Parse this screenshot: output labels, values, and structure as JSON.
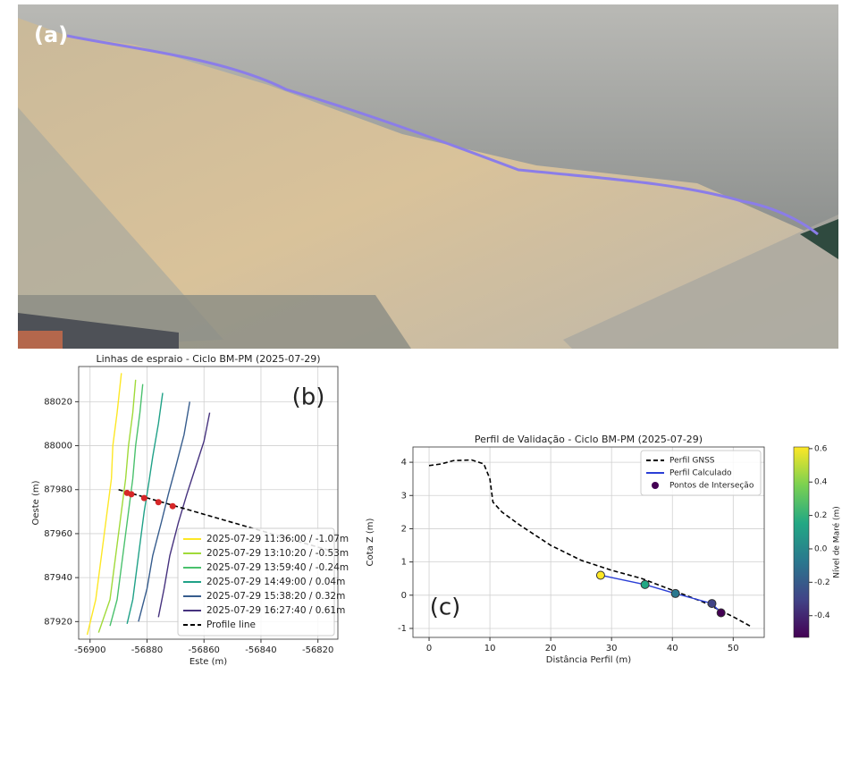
{
  "image_panel": {
    "label": "(a)"
  },
  "chart_data": [
    {
      "type": "line",
      "title": "Linhas de espraio - Ciclo BM-PM (2025-07-29)",
      "x_label": "Este (m)",
      "y_label": "Oeste (m)",
      "annotation": "(b)",
      "xlim": [
        -56904,
        -56813
      ],
      "ylim": [
        87912,
        88036
      ],
      "xticks": [
        -56900,
        -56880,
        -56860,
        -56840,
        -56820
      ],
      "yticks": [
        87920,
        87940,
        87960,
        87980,
        88000,
        88020
      ],
      "grid": true,
      "legend": "lower right",
      "series": [
        {
          "name": "2025-07-29 11:36:00 / -1.07m",
          "color": "#fde725",
          "x": [
            -56889,
            -56890.5,
            -56892,
            -56892.5,
            -56894,
            -56896,
            -56898,
            -56901
          ],
          "values": [
            88033,
            88015,
            88000,
            87985,
            87970,
            87950,
            87930,
            87914
          ]
        },
        {
          "name": "2025-07-29 13:10:20 / -0.53m",
          "color": "#a0da39",
          "x": [
            -56884,
            -56885,
            -56886.5,
            -56887.5,
            -56889,
            -56891,
            -56893,
            -56897
          ],
          "values": [
            88030,
            88015,
            88000,
            87985,
            87970,
            87950,
            87930,
            87915
          ]
        },
        {
          "name": "2025-07-29 13:59:40 / -0.24m",
          "color": "#4ac16d",
          "x": [
            -56881.5,
            -56882.5,
            -56884,
            -56885,
            -56886.5,
            -56888.5,
            -56890.5,
            -56893
          ],
          "values": [
            88028,
            88015,
            88000,
            87985,
            87970,
            87950,
            87930,
            87918
          ]
        },
        {
          "name": "2025-07-29 14:49:00 / 0.04m",
          "color": "#1fa187",
          "x": [
            -56874.5,
            -56876,
            -56878,
            -56879.5,
            -56881,
            -56883,
            -56885,
            -56887
          ],
          "values": [
            88024,
            88010,
            87995,
            87982,
            87970,
            87950,
            87930,
            87919
          ]
        },
        {
          "name": "2025-07-29 15:38:20 / 0.32m",
          "color": "#365c8d",
          "x": [
            -56865,
            -56867,
            -56870,
            -56872.5,
            -56875,
            -56878,
            -56880,
            -56883
          ],
          "values": [
            88020,
            88005,
            87990,
            87978,
            87965,
            87950,
            87935,
            87920
          ]
        },
        {
          "name": "2025-07-29 16:27:40 / 0.61m",
          "color": "#46327e",
          "x": [
            -56858,
            -56860,
            -56863,
            -56866,
            -56869,
            -56872,
            -56874,
            -56876
          ],
          "values": [
            88015,
            88002,
            87990,
            87978,
            87965,
            87950,
            87935,
            87922
          ]
        },
        {
          "name": "Profile line",
          "color": "#000000",
          "dash": true,
          "x": [
            -56890,
            -56815
          ],
          "values": [
            87980,
            87952
          ]
        },
        {
          "mode": "scatter",
          "color": "#d62728",
          "x": [
            -56887,
            -56885.5,
            -56881,
            -56876,
            -56871
          ],
          "values": [
            87978.5,
            87977.9,
            87976.2,
            87974.3,
            87972.5
          ]
        }
      ]
    },
    {
      "type": "line",
      "title": "Perfil de Validação - Ciclo BM-PM (2025-07-29)",
      "x_label": "Distância Perfil (m)",
      "y_label": "Cota Z (m)",
      "annotation": "(c)",
      "xlim": [
        -2.65,
        55.1
      ],
      "ylim": [
        -1.27,
        4.46
      ],
      "xticks": [
        0,
        10,
        20,
        30,
        40,
        50
      ],
      "yticks": [
        -1,
        0,
        1,
        2,
        3,
        4
      ],
      "grid": true,
      "legend": "upper right",
      "series": [
        {
          "name": "Perfil GNSS",
          "color": "#000000",
          "dash": true,
          "x": [
            0,
            2,
            4,
            7,
            9,
            10,
            10.5,
            12,
            15,
            20,
            25,
            30,
            35,
            40,
            45,
            50,
            53
          ],
          "values": [
            3.9,
            3.95,
            4.05,
            4.07,
            3.95,
            3.5,
            2.8,
            2.5,
            2.1,
            1.5,
            1.05,
            0.75,
            0.5,
            0.15,
            -0.2,
            -0.65,
            -0.95
          ]
        },
        {
          "name": "Perfil Calculado",
          "color": "#2b3fd6",
          "x": [
            28.2,
            35.5,
            40.5,
            46.5,
            48
          ],
          "values": [
            0.6,
            0.32,
            0.05,
            -0.25,
            -0.53
          ]
        },
        {
          "name": "Pontos de Interseção",
          "mode": "scatter",
          "color": "#440154",
          "colors": [
            "#fde725",
            "#22a884",
            "#2a788e",
            "#414487",
            "#440154"
          ],
          "x": [
            28.2,
            35.5,
            40.5,
            46.5,
            48
          ],
          "values": [
            0.6,
            0.32,
            0.05,
            -0.25,
            -0.53
          ]
        }
      ],
      "colorbar": {
        "label": "Nível de Maré (m)",
        "lim": [
          -0.53,
          0.61
        ],
        "ticks": [
          -0.4,
          -0.2,
          {
            "value": 0,
            "label": "0.0"
          },
          0.2,
          0.4,
          0.6
        ]
      }
    }
  ]
}
